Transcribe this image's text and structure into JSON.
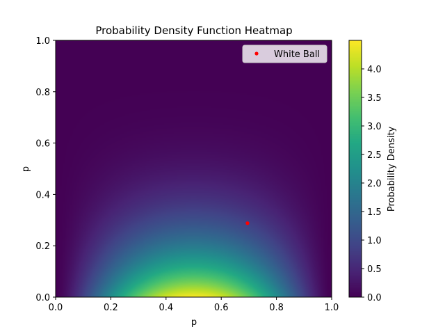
{
  "chart_data": {
    "type": "heatmap",
    "title": "Probability Density Function Heatmap",
    "xlabel": "p",
    "ylabel": "p",
    "xlim": [
      0,
      1
    ],
    "ylim": [
      0,
      1
    ],
    "x_ticks": [
      "0.0",
      "0.2",
      "0.4",
      "0.6",
      "0.8",
      "1.0"
    ],
    "y_ticks": [
      "0.0",
      "0.2",
      "0.4",
      "0.6",
      "0.8",
      "1.0"
    ],
    "x_tick_values": [
      0,
      0.2,
      0.4,
      0.6,
      0.8,
      1.0
    ],
    "y_tick_values": [
      0,
      0.2,
      0.4,
      0.6,
      0.8,
      1.0
    ],
    "colormap": "viridis",
    "density_peak": 4.5,
    "colorbar": {
      "label": "Probability Density",
      "range": [
        0,
        4.5
      ],
      "ticks": [
        "0.0",
        "0.5",
        "1.0",
        "1.5",
        "2.0",
        "2.5",
        "3.0",
        "3.5",
        "4.0"
      ],
      "tick_values": [
        0,
        0.5,
        1.0,
        1.5,
        2.0,
        2.5,
        3.0,
        3.5,
        4.0
      ]
    },
    "points": [
      {
        "name": "White Ball",
        "x": 0.695,
        "y": 0.288,
        "color": "#ff0000"
      }
    ],
    "legend": {
      "placement": "top-right",
      "entries": [
        "White Ball"
      ]
    },
    "grid": false
  }
}
